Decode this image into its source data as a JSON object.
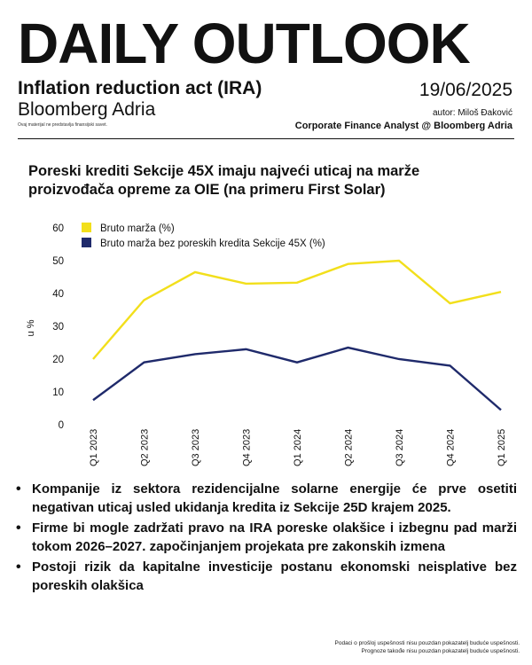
{
  "header": {
    "masthead": "DAILY OUTLOOK",
    "topic": "Inflation reduction act (IRA)",
    "brand": "Bloomberg Adria",
    "disclaimer": "Ovaj materijal ne predstavlja finansijski savet.",
    "date": "19/06/2025",
    "author": "autor: Miloš Đaković",
    "role": "Corporate Finance Analyst @ Bloomberg Adria"
  },
  "chart_data": {
    "type": "line",
    "title": "Poreski krediti Sekcije 45X imaju najveći uticaj na marže proizvođača opreme za OIE (na primeru First Solar)",
    "ylabel": "u %",
    "xlabel": "",
    "ylim": [
      0,
      60
    ],
    "yticks": [
      0,
      10,
      20,
      30,
      40,
      50,
      60
    ],
    "grid": false,
    "legend_position": "top-left",
    "categories": [
      "Q1 2023",
      "Q2 2023",
      "Q3 2023",
      "Q4 2023",
      "Q1 2024",
      "Q2 2024",
      "Q3 2024",
      "Q4 2024",
      "Q1 2025"
    ],
    "series": [
      {
        "name": "Bruto marža (%)",
        "color": "#f2df1b",
        "values": [
          20,
          38,
          46.5,
          43,
          43.3,
          49,
          50,
          37,
          40.5
        ]
      },
      {
        "name": "Bruto marža bez poreskih kredita Sekcije 45X (%)",
        "color": "#1f2a6b",
        "values": [
          7.5,
          19,
          21.5,
          23,
          19,
          23.5,
          20,
          18,
          4.5
        ]
      }
    ]
  },
  "bullets": [
    "Kompanije iz sektora rezidencijalne solarne energije će prve osetiti negativan uticaj usled ukidanja kredita iz Sekcije 25D krajem 2025.",
    "Firme bi mogle zadržati pravo na IRA poreske olakšice i izbegnu pad marži tokom 2026–2027. započinjanjem projekata pre zakonskih izmena",
    "Postoji rizik da kapitalne investicije postanu ekonomski neisplative bez poreskih olakšica"
  ],
  "footer": {
    "line1": "Podaci o prošloj uspešnosti nisu pouzdan pokazatelj buduće uspešnosti.",
    "line2": "Prognoze takođe nisu pouzdan pokazatelj buduće uspešnosti."
  }
}
